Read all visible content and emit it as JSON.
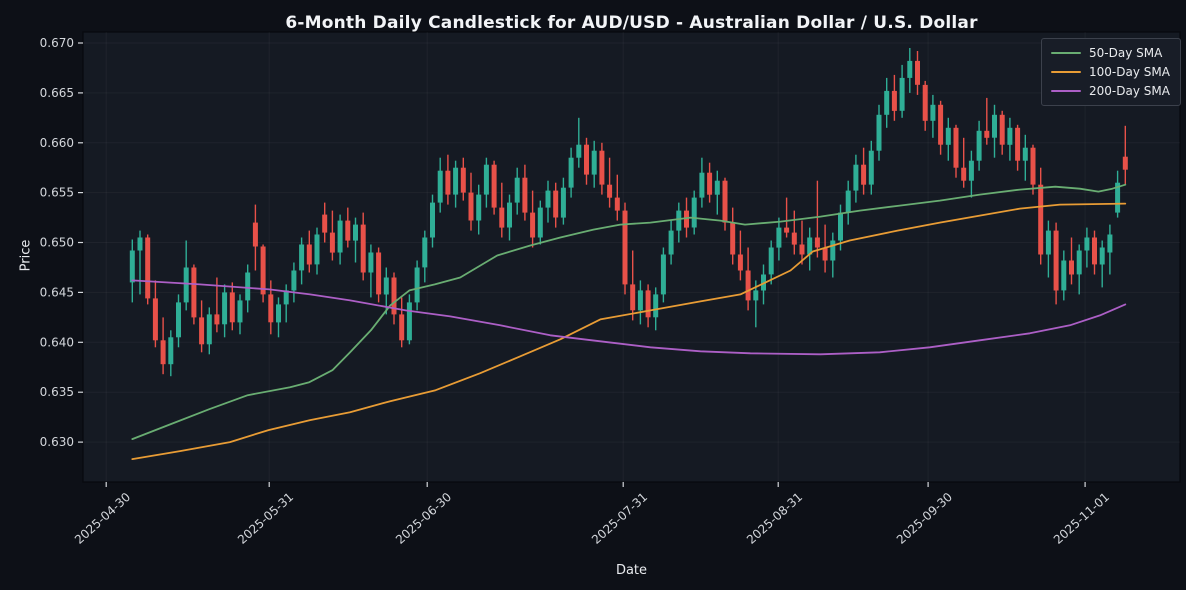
{
  "title": "6-Month Daily Candlestick for AUD/USD - Australian Dollar / U.S. Dollar",
  "chart_data": {
    "type": "candlestick",
    "title": "6-Month Daily Candlestick for AUD/USD - Australian Dollar / U.S. Dollar",
    "xlabel": "Date",
    "ylabel": "Price",
    "ylim": [
      0.626,
      0.6711
    ],
    "xlim": [
      -6.4,
      136.1
    ],
    "yticks": [
      0.63,
      0.635,
      0.64,
      0.645,
      0.65,
      0.655,
      0.66,
      0.665,
      0.67
    ],
    "xticks": [
      {
        "label": "2025-04-30",
        "pos": -3.38
      },
      {
        "label": "2025-05-31",
        "pos": 17.79
      },
      {
        "label": "2025-06-30",
        "pos": 38.31
      },
      {
        "label": "2025-07-31",
        "pos": 63.77
      },
      {
        "label": "2025-08-31",
        "pos": 83.9
      },
      {
        "label": "2025-09-30",
        "pos": 103.38
      },
      {
        "label": "2025-11-01",
        "pos": 123.77
      }
    ],
    "grid": false,
    "legend_position": "upper right",
    "colors": {
      "figure_bg": "#0d1017",
      "axes_bg": "#151a23",
      "spine": "#07090e",
      "up_candle": "#2fae96",
      "down_candle": "#e85149",
      "tick_text": "#d4d7dc",
      "grid": "rgba(255,255,255,0.045)"
    },
    "series": [
      {
        "name": "50-Day SMA",
        "color": "#69ad72",
        "points": [
          [
            0,
            0.6303
          ],
          [
            5,
            0.6318
          ],
          [
            10,
            0.6333
          ],
          [
            15,
            0.6347
          ],
          [
            20.5,
            0.6355
          ],
          [
            23,
            0.636
          ],
          [
            26,
            0.6372
          ],
          [
            28.3,
            0.639
          ],
          [
            31,
            0.6412
          ],
          [
            33.5,
            0.6437
          ],
          [
            36,
            0.6452
          ],
          [
            39.3,
            0.6458
          ],
          [
            42.6,
            0.6465
          ],
          [
            47.4,
            0.6487
          ],
          [
            51.7,
            0.6497
          ],
          [
            55.6,
            0.6505
          ],
          [
            59.9,
            0.6513
          ],
          [
            63.4,
            0.6518
          ],
          [
            67.3,
            0.652
          ],
          [
            72.5,
            0.6525
          ],
          [
            76.4,
            0.6522
          ],
          [
            79.6,
            0.6518
          ],
          [
            84.2,
            0.6521
          ],
          [
            89.4,
            0.6526
          ],
          [
            94.5,
            0.6532
          ],
          [
            99.7,
            0.6537
          ],
          [
            104.9,
            0.6542
          ],
          [
            110.1,
            0.6548
          ],
          [
            115.3,
            0.6553
          ],
          [
            119.9,
            0.6556
          ],
          [
            123.1,
            0.6554
          ],
          [
            125.5,
            0.6551
          ],
          [
            127.3,
            0.6554
          ],
          [
            129,
            0.6558
          ]
        ]
      },
      {
        "name": "100-Day SMA",
        "color": "#e89c35",
        "points": [
          [
            0,
            0.6283
          ],
          [
            6.2,
            0.6291
          ],
          [
            12.7,
            0.63
          ],
          [
            17.7,
            0.6312
          ],
          [
            23.1,
            0.6322
          ],
          [
            28.3,
            0.633
          ],
          [
            33.5,
            0.6341
          ],
          [
            39.4,
            0.6352
          ],
          [
            45.2,
            0.6369
          ],
          [
            50.4,
            0.6386
          ],
          [
            55.6,
            0.6403
          ],
          [
            60.8,
            0.6423
          ],
          [
            67.3,
            0.6432
          ],
          [
            73.8,
            0.6441
          ],
          [
            79,
            0.6448
          ],
          [
            85.5,
            0.6472
          ],
          [
            88.4,
            0.6491
          ],
          [
            93.2,
            0.6502
          ],
          [
            99.4,
            0.6512
          ],
          [
            104.9,
            0.652
          ],
          [
            110.1,
            0.6527
          ],
          [
            115.3,
            0.6534
          ],
          [
            120.5,
            0.6538
          ],
          [
            129,
            0.6539
          ]
        ]
      },
      {
        "name": "200-Day SMA",
        "color": "#ac5fc6",
        "points": [
          [
            0,
            0.6462
          ],
          [
            8.8,
            0.6458
          ],
          [
            17.8,
            0.6453
          ],
          [
            23.1,
            0.6448
          ],
          [
            28.3,
            0.6442
          ],
          [
            35.5,
            0.6432
          ],
          [
            41.3,
            0.6426
          ],
          [
            47.8,
            0.6417
          ],
          [
            54.3,
            0.6407
          ],
          [
            60.8,
            0.6401
          ],
          [
            67.3,
            0.6395
          ],
          [
            73.8,
            0.6391
          ],
          [
            80.3,
            0.6389
          ],
          [
            89.4,
            0.6388
          ],
          [
            97.1,
            0.639
          ],
          [
            103.6,
            0.6395
          ],
          [
            110.1,
            0.6402
          ],
          [
            116.6,
            0.6409
          ],
          [
            121.8,
            0.6417
          ],
          [
            125.7,
            0.6427
          ],
          [
            129,
            0.6438
          ]
        ]
      }
    ],
    "candles": [
      [
        0.646,
        0.6503,
        0.644,
        0.6492
      ],
      [
        0.6492,
        0.6512,
        0.6448,
        0.6505
      ],
      [
        0.6505,
        0.6508,
        0.6438,
        0.6444
      ],
      [
        0.6444,
        0.6462,
        0.6395,
        0.6402
      ],
      [
        0.6402,
        0.6425,
        0.6368,
        0.6378
      ],
      [
        0.6378,
        0.6412,
        0.6366,
        0.6405
      ],
      [
        0.6405,
        0.6448,
        0.6395,
        0.644
      ],
      [
        0.644,
        0.6502,
        0.6432,
        0.6475
      ],
      [
        0.6475,
        0.6478,
        0.6418,
        0.6425
      ],
      [
        0.6425,
        0.6442,
        0.639,
        0.6398
      ],
      [
        0.6398,
        0.6435,
        0.6388,
        0.6428
      ],
      [
        0.6428,
        0.6465,
        0.641,
        0.6418
      ],
      [
        0.6418,
        0.6458,
        0.6405,
        0.645
      ],
      [
        0.645,
        0.646,
        0.6412,
        0.642
      ],
      [
        0.642,
        0.6448,
        0.6408,
        0.6442
      ],
      [
        0.6442,
        0.6478,
        0.643,
        0.647
      ],
      [
        0.652,
        0.6538,
        0.6472,
        0.6496
      ],
      [
        0.6496,
        0.6498,
        0.644,
        0.6448
      ],
      [
        0.6448,
        0.6462,
        0.6408,
        0.642
      ],
      [
        0.642,
        0.6445,
        0.6405,
        0.6438
      ],
      [
        0.6438,
        0.6458,
        0.642,
        0.6452
      ],
      [
        0.6452,
        0.648,
        0.644,
        0.6472
      ],
      [
        0.6472,
        0.6505,
        0.6458,
        0.6498
      ],
      [
        0.6498,
        0.6512,
        0.647,
        0.6478
      ],
      [
        0.6478,
        0.6515,
        0.6468,
        0.6508
      ],
      [
        0.6528,
        0.654,
        0.65,
        0.651
      ],
      [
        0.651,
        0.6532,
        0.6482,
        0.649
      ],
      [
        0.649,
        0.6528,
        0.6478,
        0.6522
      ],
      [
        0.6522,
        0.6535,
        0.6495,
        0.6502
      ],
      [
        0.6502,
        0.6525,
        0.648,
        0.6518
      ],
      [
        0.6518,
        0.653,
        0.6462,
        0.647
      ],
      [
        0.647,
        0.6498,
        0.6445,
        0.649
      ],
      [
        0.649,
        0.6495,
        0.644,
        0.6448
      ],
      [
        0.6448,
        0.6475,
        0.6428,
        0.6465
      ],
      [
        0.6465,
        0.647,
        0.6418,
        0.6428
      ],
      [
        0.6428,
        0.6445,
        0.6395,
        0.6402
      ],
      [
        0.6402,
        0.6448,
        0.6398,
        0.644
      ],
      [
        0.644,
        0.6482,
        0.6432,
        0.6475
      ],
      [
        0.6475,
        0.6512,
        0.646,
        0.6505
      ],
      [
        0.6505,
        0.6548,
        0.6495,
        0.654
      ],
      [
        0.654,
        0.6585,
        0.653,
        0.6572
      ],
      [
        0.6572,
        0.6588,
        0.6538,
        0.6548
      ],
      [
        0.6548,
        0.6582,
        0.6535,
        0.6575
      ],
      [
        0.6575,
        0.6585,
        0.6542,
        0.655
      ],
      [
        0.655,
        0.657,
        0.6512,
        0.6522
      ],
      [
        0.6522,
        0.6558,
        0.6508,
        0.6548
      ],
      [
        0.6548,
        0.6585,
        0.6535,
        0.6578
      ],
      [
        0.6578,
        0.6582,
        0.6528,
        0.6535
      ],
      [
        0.6535,
        0.656,
        0.6505,
        0.6515
      ],
      [
        0.6515,
        0.6548,
        0.6502,
        0.654
      ],
      [
        0.654,
        0.6575,
        0.6528,
        0.6565
      ],
      [
        0.6565,
        0.6578,
        0.6522,
        0.653
      ],
      [
        0.653,
        0.6552,
        0.6495,
        0.6505
      ],
      [
        0.6505,
        0.6542,
        0.6498,
        0.6535
      ],
      [
        0.6535,
        0.6562,
        0.652,
        0.6552
      ],
      [
        0.6552,
        0.656,
        0.6515,
        0.6525
      ],
      [
        0.6525,
        0.6565,
        0.6518,
        0.6555
      ],
      [
        0.6555,
        0.6595,
        0.6545,
        0.6585
      ],
      [
        0.6585,
        0.6625,
        0.6575,
        0.6598
      ],
      [
        0.6598,
        0.6605,
        0.6558,
        0.6568
      ],
      [
        0.6568,
        0.6602,
        0.6555,
        0.6592
      ],
      [
        0.6592,
        0.66,
        0.6548,
        0.6558
      ],
      [
        0.6558,
        0.6585,
        0.6535,
        0.6545
      ],
      [
        0.6545,
        0.6568,
        0.6522,
        0.6532
      ],
      [
        0.6532,
        0.654,
        0.6448,
        0.6458
      ],
      [
        0.6458,
        0.6492,
        0.6422,
        0.6432
      ],
      [
        0.6432,
        0.6462,
        0.6418,
        0.6452
      ],
      [
        0.6452,
        0.6458,
        0.6415,
        0.6425
      ],
      [
        0.6425,
        0.6455,
        0.6412,
        0.6448
      ],
      [
        0.6448,
        0.6495,
        0.644,
        0.6488
      ],
      [
        0.6488,
        0.6522,
        0.6478,
        0.6512
      ],
      [
        0.6512,
        0.654,
        0.65,
        0.6532
      ],
      [
        0.6532,
        0.6545,
        0.6505,
        0.6515
      ],
      [
        0.6515,
        0.6552,
        0.6508,
        0.6545
      ],
      [
        0.6545,
        0.6585,
        0.6535,
        0.657
      ],
      [
        0.657,
        0.658,
        0.654,
        0.6548
      ],
      [
        0.6548,
        0.6572,
        0.6528,
        0.6562
      ],
      [
        0.6562,
        0.6565,
        0.6512,
        0.652
      ],
      [
        0.652,
        0.6535,
        0.6478,
        0.6488
      ],
      [
        0.6488,
        0.6512,
        0.6462,
        0.6472
      ],
      [
        0.6472,
        0.6495,
        0.6432,
        0.6442
      ],
      [
        0.6442,
        0.6462,
        0.6415,
        0.6452
      ],
      [
        0.6452,
        0.6478,
        0.6438,
        0.6468
      ],
      [
        0.6468,
        0.6502,
        0.6458,
        0.6495
      ],
      [
        0.6495,
        0.6525,
        0.6482,
        0.6515
      ],
      [
        0.6515,
        0.6545,
        0.6505,
        0.651
      ],
      [
        0.651,
        0.6532,
        0.6488,
        0.6498
      ],
      [
        0.6498,
        0.6522,
        0.6478,
        0.6488
      ],
      [
        0.6488,
        0.6515,
        0.6472,
        0.6505
      ],
      [
        0.6505,
        0.6562,
        0.6485,
        0.6495
      ],
      [
        0.6495,
        0.6518,
        0.647,
        0.6482
      ],
      [
        0.6482,
        0.651,
        0.6465,
        0.6502
      ],
      [
        0.6502,
        0.6538,
        0.6492,
        0.653
      ],
      [
        0.653,
        0.6562,
        0.6518,
        0.6552
      ],
      [
        0.6552,
        0.6588,
        0.654,
        0.6578
      ],
      [
        0.6578,
        0.6595,
        0.6548,
        0.6558
      ],
      [
        0.6558,
        0.6602,
        0.6548,
        0.6592
      ],
      [
        0.6592,
        0.6638,
        0.6582,
        0.6628
      ],
      [
        0.6628,
        0.6665,
        0.6615,
        0.6652
      ],
      [
        0.6652,
        0.6668,
        0.6622,
        0.6632
      ],
      [
        0.6632,
        0.6678,
        0.6625,
        0.6665
      ],
      [
        0.6665,
        0.6695,
        0.665,
        0.6682
      ],
      [
        0.6682,
        0.6692,
        0.6648,
        0.6658
      ],
      [
        0.6658,
        0.6662,
        0.6612,
        0.6622
      ],
      [
        0.6622,
        0.6648,
        0.6605,
        0.6638
      ],
      [
        0.6638,
        0.6642,
        0.6588,
        0.6598
      ],
      [
        0.6598,
        0.6625,
        0.6582,
        0.6615
      ],
      [
        0.6615,
        0.6618,
        0.6565,
        0.6575
      ],
      [
        0.6575,
        0.6605,
        0.6555,
        0.6562
      ],
      [
        0.6562,
        0.6592,
        0.6545,
        0.6582
      ],
      [
        0.6582,
        0.6622,
        0.6572,
        0.6612
      ],
      [
        0.6612,
        0.6645,
        0.6598,
        0.6605
      ],
      [
        0.6605,
        0.6638,
        0.6585,
        0.6628
      ],
      [
        0.6628,
        0.6632,
        0.6588,
        0.6598
      ],
      [
        0.6598,
        0.6625,
        0.6582,
        0.6615
      ],
      [
        0.6615,
        0.6618,
        0.6572,
        0.6582
      ],
      [
        0.6582,
        0.6608,
        0.6562,
        0.6595
      ],
      [
        0.6595,
        0.6598,
        0.6548,
        0.6558
      ],
      [
        0.6558,
        0.6575,
        0.6478,
        0.6488
      ],
      [
        0.6488,
        0.6522,
        0.6465,
        0.6512
      ],
      [
        0.6512,
        0.652,
        0.6438,
        0.6452
      ],
      [
        0.6452,
        0.6492,
        0.6442,
        0.6482
      ],
      [
        0.6482,
        0.6505,
        0.6458,
        0.6468
      ],
      [
        0.6468,
        0.6498,
        0.6448,
        0.6492
      ],
      [
        0.6492,
        0.6515,
        0.6475,
        0.6505
      ],
      [
        0.6505,
        0.6512,
        0.6468,
        0.6478
      ],
      [
        0.6478,
        0.6502,
        0.6455,
        0.6495
      ],
      [
        0.649,
        0.6518,
        0.6468,
        0.6508
      ],
      [
        0.653,
        0.6572,
        0.6525,
        0.656
      ],
      [
        0.6586,
        0.6617,
        0.6558,
        0.6573
      ]
    ]
  }
}
